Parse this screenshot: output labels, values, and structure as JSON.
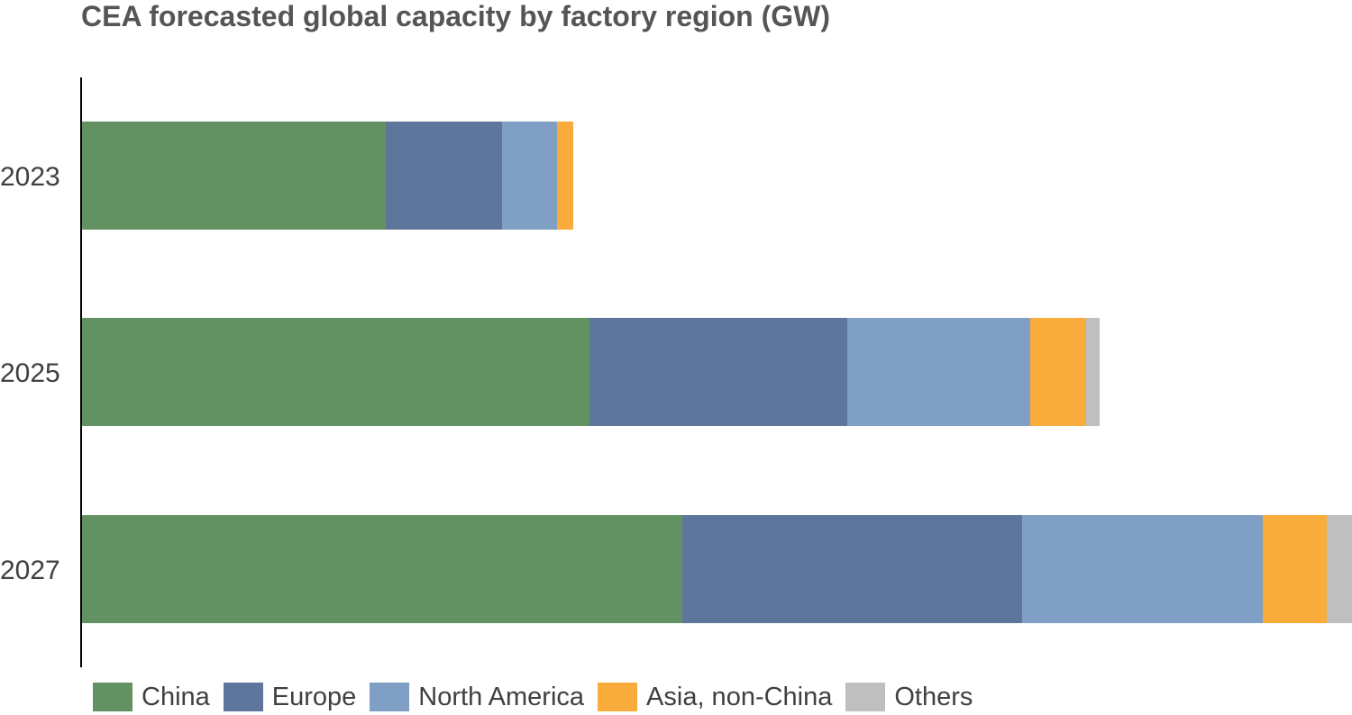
{
  "chart_data": {
    "type": "bar",
    "orientation": "horizontal",
    "stacked": true,
    "title": "CEA forecasted global capacity by factory region (GW)",
    "xlabel": "",
    "ylabel": "",
    "categories": [
      "2023",
      "2025",
      "2027"
    ],
    "xlim": [
      0,
      1410
    ],
    "series": [
      {
        "name": "China",
        "color": "#629262",
        "values": [
          338,
          564,
          667
        ]
      },
      {
        "name": "Europe",
        "color": "#5e769c",
        "values": [
          129,
          286,
          377
        ]
      },
      {
        "name": "North America",
        "color": "#809fc4",
        "values": [
          61,
          203,
          267
        ]
      },
      {
        "name": "Asia, non-China",
        "color": "#f9ab3c",
        "values": [
          18,
          62,
          71
        ]
      },
      {
        "name": "Others",
        "color": "#bfbfbf",
        "values": [
          0,
          15,
          28
        ]
      }
    ],
    "legend_position": "bottom",
    "grid": false
  }
}
